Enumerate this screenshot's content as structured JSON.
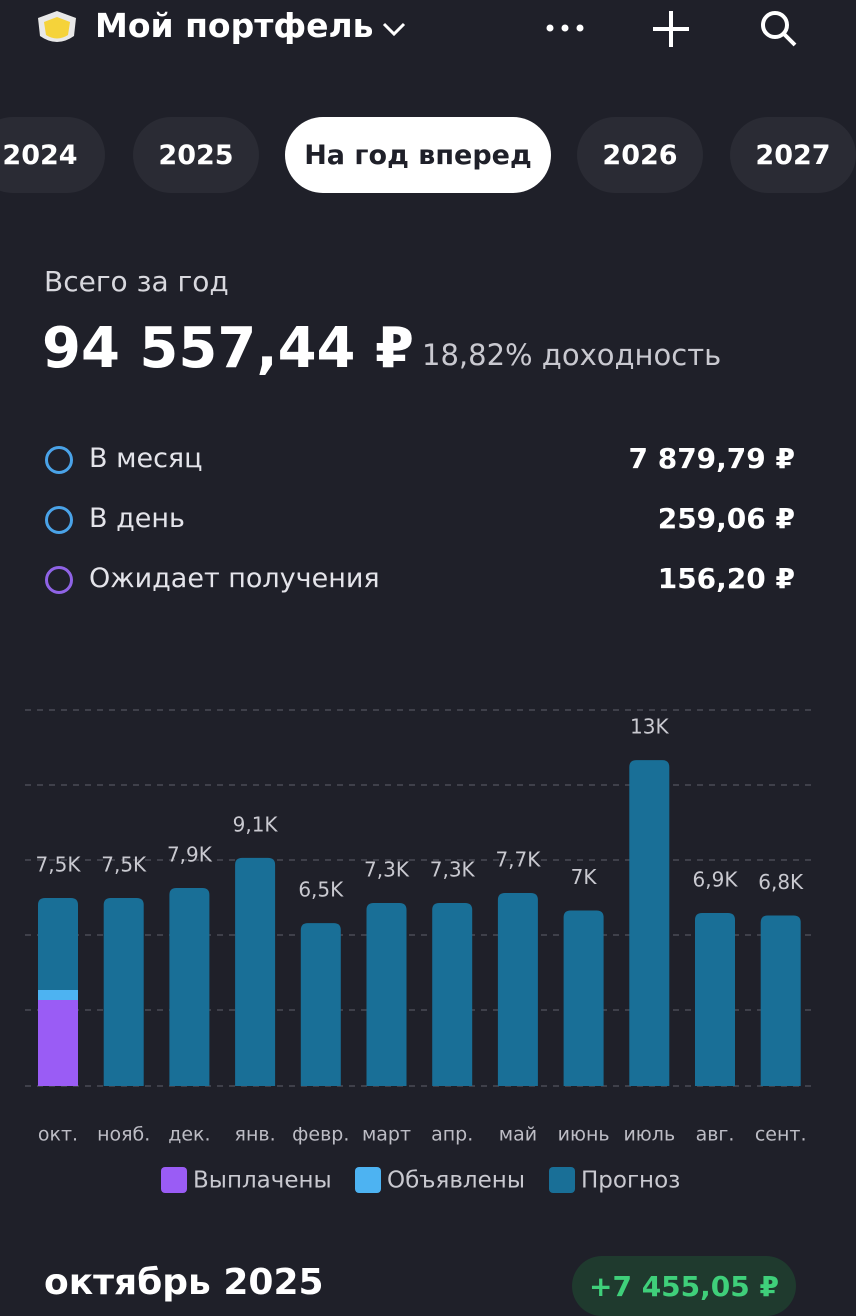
{
  "header": {
    "title": "Мой портфель"
  },
  "tabs": [
    "2024",
    "2025",
    "На год вперед",
    "2026",
    "2027"
  ],
  "active_tab": 2,
  "summary": {
    "label": "Всего за год",
    "total": "94 557,44 ₽",
    "yield": "18,82% доходность"
  },
  "rows": [
    {
      "label": "В месяц",
      "value": "7 879,79 ₽"
    },
    {
      "label": "В день",
      "value": "259,06 ₽"
    },
    {
      "label": "Ожидает получения",
      "value": "156,20 ₽"
    }
  ],
  "chart_data": {
    "type": "bar",
    "stacked": true,
    "categories": [
      "окт.",
      "нояб.",
      "дек.",
      "янв.",
      "февр.",
      "март",
      "апр.",
      "май",
      "июнь",
      "июль",
      "авг.",
      "сент."
    ],
    "series": [
      {
        "name": "Выплачены",
        "color": "#9a5cf5",
        "values": [
          3430,
          0,
          0,
          0,
          0,
          0,
          0,
          0,
          0,
          0,
          0,
          0
        ]
      },
      {
        "name": "Объявлены",
        "color": "#4db3f2",
        "values": [
          400,
          0,
          0,
          0,
          0,
          0,
          0,
          0,
          0,
          0,
          0,
          0
        ]
      },
      {
        "name": "Прогноз",
        "color": "#196f97",
        "values": [
          3670,
          7500,
          7900,
          9100,
          6500,
          7300,
          7300,
          7700,
          7000,
          13000,
          6900,
          6800
        ]
      }
    ],
    "totals": {
      "values": [
        7500,
        7500,
        7900,
        9100,
        6500,
        7300,
        7300,
        7700,
        7000,
        13000,
        6900,
        6800
      ],
      "value_labels": [
        "7,5K",
        "7,5K",
        "7,9K",
        "9,1K",
        "6,5K",
        "7,3K",
        "7,3K",
        "7,7K",
        "7K",
        "13K",
        "6,9K",
        "6,8K"
      ]
    },
    "ylim": [
      0,
      15000
    ]
  },
  "section": {
    "title": "октябрь 2025",
    "amount": "+7 455,05 ₽"
  }
}
